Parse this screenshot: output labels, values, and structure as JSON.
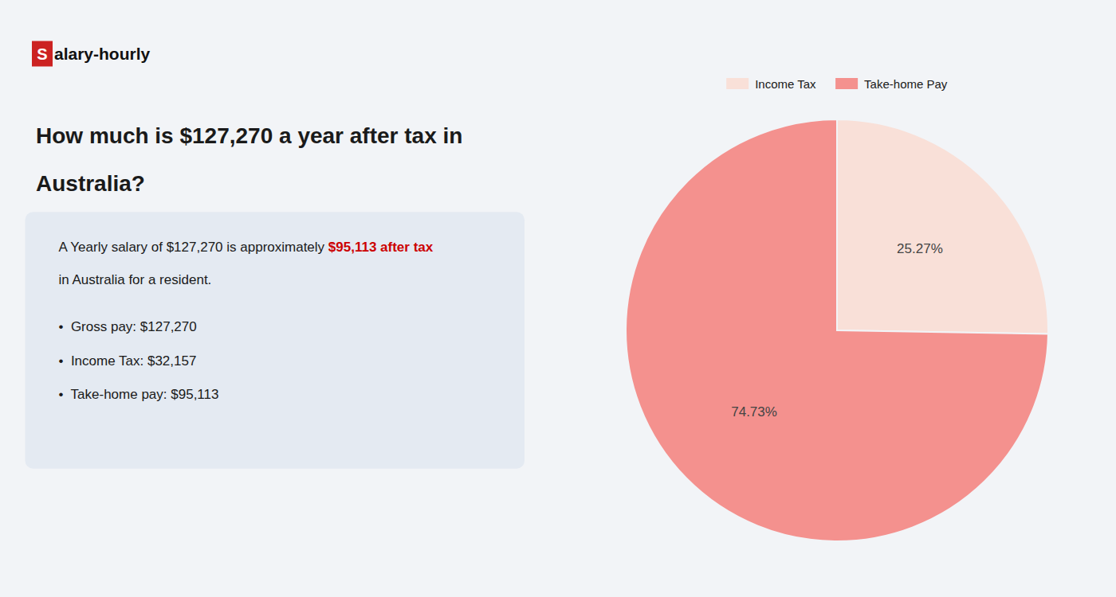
{
  "chart_data": {
    "type": "pie",
    "title": "How much is $127,270 a year after tax in Australia?",
    "categories": [
      "Income Tax",
      "Take-home Pay"
    ],
    "values": [
      25.27,
      74.73
    ],
    "value_labels": [
      "25.27%",
      "74.73%"
    ],
    "colors": [
      "#f9e0d8",
      "#f4918e"
    ],
    "data_labels": true,
    "legend": "top",
    "annotations": [
      "S",
      "alary-hourly",
      "A Yearly salary of $127,270 is approximately ",
      "$95,113 after tax",
      "in Australia for a resident.",
      "•  Gross pay: $127,270",
      "•  Income Tax: $32,157",
      "•  Take-home pay: $95,113"
    ]
  }
}
